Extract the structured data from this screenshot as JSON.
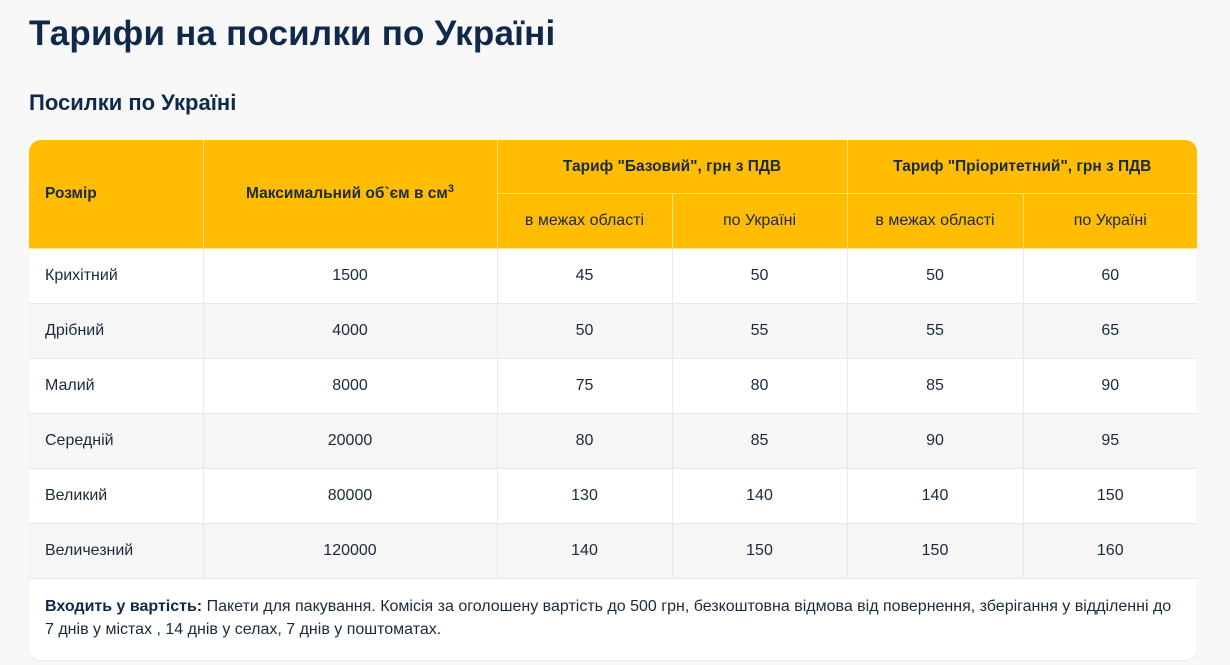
{
  "page": {
    "title": "Тарифи на посилки по Україні",
    "section_title": "Посилки по Україні"
  },
  "colors": {
    "header_bg": "#ffbc00",
    "title_text": "#10294a",
    "row_alt_bg": "#f6f6f6",
    "page_bg": "#f8f8f8"
  },
  "table": {
    "headers": {
      "size": "Розмір",
      "max_volume": "Максимальний об`єм в см",
      "max_volume_sup": "3",
      "basic_group": "Тариф \"Базовий\", грн з ПДВ",
      "priority_group": "Тариф \"Пріоритетний\", грн з ПДВ",
      "basic_region": "в межах області",
      "basic_ukraine": "по Україні",
      "priority_region": "в межах області",
      "priority_ukraine": "по Україні"
    },
    "rows": [
      {
        "size": "Крихітний",
        "volume": "1500",
        "basic_region": "45",
        "basic_ukraine": "50",
        "priority_region": "50",
        "priority_ukraine": "60"
      },
      {
        "size": "Дрібний",
        "volume": "4000",
        "basic_region": "50",
        "basic_ukraine": "55",
        "priority_region": "55",
        "priority_ukraine": "65"
      },
      {
        "size": "Малий",
        "volume": "8000",
        "basic_region": "75",
        "basic_ukraine": "80",
        "priority_region": "85",
        "priority_ukraine": "90"
      },
      {
        "size": "Середній",
        "volume": "20000",
        "basic_region": "80",
        "basic_ukraine": "85",
        "priority_region": "90",
        "priority_ukraine": "95"
      },
      {
        "size": "Великий",
        "volume": "80000",
        "basic_region": "130",
        "basic_ukraine": "140",
        "priority_region": "140",
        "priority_ukraine": "150"
      },
      {
        "size": "Величезний",
        "volume": "120000",
        "basic_region": "140",
        "basic_ukraine": "150",
        "priority_region": "150",
        "priority_ukraine": "160"
      }
    ]
  },
  "note": {
    "label": "Входить у вартість:",
    "text": " Пакети для пакування. Комісія за оголошену вартість до 500 грн, безкоштовна відмова від повернення, зберігання у відділенні до 7 днів у містах , 14 днів у селах, 7 днів у поштоматах."
  }
}
